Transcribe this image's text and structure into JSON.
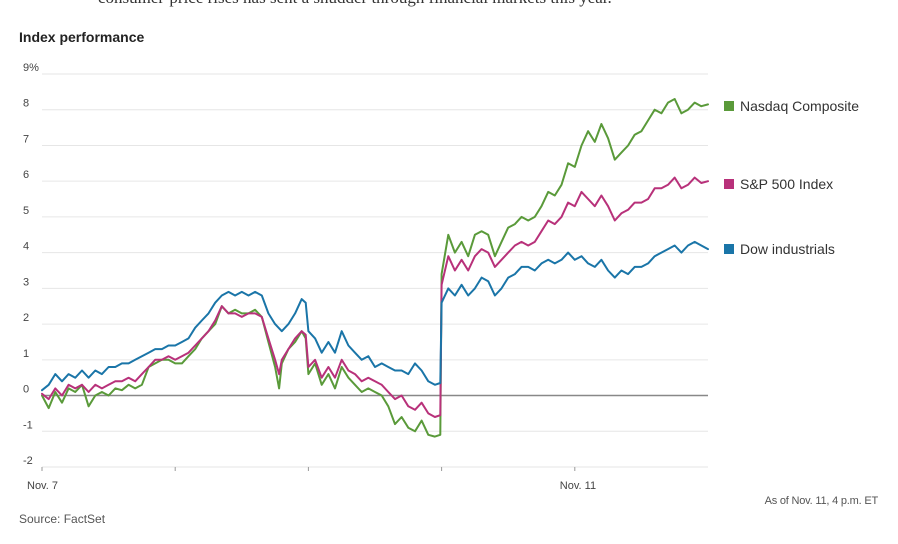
{
  "header": {
    "cut_text": "consumer-price rises has sent a shudder through financial markets this year."
  },
  "footer": {
    "source": "Source: FactSet",
    "timestamp": "As of Nov. 11, 4 p.m. ET"
  },
  "chart_data": {
    "type": "line",
    "title": "Index performance",
    "ylim": [
      -2,
      9
    ],
    "y_ticks": [
      -2,
      -1,
      0,
      1,
      2,
      3,
      4,
      5,
      6,
      7,
      8,
      9
    ],
    "y_tick_labels": [
      "-2",
      "-1",
      "0",
      "1",
      "2",
      "3",
      "4",
      "5",
      "6",
      "7",
      "8",
      "9%"
    ],
    "x_tick_labels": [
      {
        "day": 0,
        "label": "Nov. 7"
      },
      {
        "day": 1,
        "label": ""
      },
      {
        "day": 2,
        "label": ""
      },
      {
        "day": 3,
        "label": ""
      },
      {
        "day": 4,
        "label": "Nov. 11"
      }
    ],
    "xlim": [
      0,
      5
    ],
    "grid": true,
    "legend": "right",
    "series": [
      {
        "name": "Nasdaq Composite",
        "color": "#5a9a3a",
        "points": [
          [
            0.0,
            0.0
          ],
          [
            0.05,
            -0.35
          ],
          [
            0.1,
            0.1
          ],
          [
            0.15,
            -0.2
          ],
          [
            0.2,
            0.2
          ],
          [
            0.25,
            0.1
          ],
          [
            0.3,
            0.3
          ],
          [
            0.35,
            -0.3
          ],
          [
            0.4,
            0.0
          ],
          [
            0.45,
            0.1
          ],
          [
            0.5,
            0.0
          ],
          [
            0.55,
            0.2
          ],
          [
            0.6,
            0.15
          ],
          [
            0.65,
            0.3
          ],
          [
            0.7,
            0.2
          ],
          [
            0.75,
            0.3
          ],
          [
            0.8,
            0.8
          ],
          [
            0.85,
            0.9
          ],
          [
            0.9,
            1.0
          ],
          [
            0.95,
            1.0
          ],
          [
            1.0,
            0.9
          ],
          [
            1.05,
            0.9
          ],
          [
            1.1,
            1.1
          ],
          [
            1.15,
            1.3
          ],
          [
            1.2,
            1.6
          ],
          [
            1.25,
            1.8
          ],
          [
            1.3,
            2.0
          ],
          [
            1.35,
            2.5
          ],
          [
            1.4,
            2.3
          ],
          [
            1.45,
            2.4
          ],
          [
            1.5,
            2.3
          ],
          [
            1.55,
            2.3
          ],
          [
            1.6,
            2.4
          ],
          [
            1.65,
            2.2
          ],
          [
            1.7,
            1.5
          ],
          [
            1.75,
            0.8
          ],
          [
            1.78,
            0.2
          ],
          [
            1.8,
            0.9
          ],
          [
            1.85,
            1.3
          ],
          [
            1.9,
            1.5
          ],
          [
            1.95,
            1.8
          ],
          [
            1.98,
            1.6
          ],
          [
            2.0,
            0.6
          ],
          [
            2.05,
            0.9
          ],
          [
            2.1,
            0.3
          ],
          [
            2.15,
            0.6
          ],
          [
            2.2,
            0.2
          ],
          [
            2.25,
            0.8
          ],
          [
            2.3,
            0.5
          ],
          [
            2.35,
            0.3
          ],
          [
            2.4,
            0.1
          ],
          [
            2.45,
            0.2
          ],
          [
            2.5,
            0.1
          ],
          [
            2.55,
            0.0
          ],
          [
            2.6,
            -0.3
          ],
          [
            2.65,
            -0.8
          ],
          [
            2.7,
            -0.6
          ],
          [
            2.75,
            -0.9
          ],
          [
            2.8,
            -1.0
          ],
          [
            2.85,
            -0.7
          ],
          [
            2.9,
            -1.1
          ],
          [
            2.95,
            -1.15
          ],
          [
            2.99,
            -1.1
          ],
          [
            3.0,
            3.4
          ],
          [
            3.05,
            4.5
          ],
          [
            3.1,
            4.0
          ],
          [
            3.15,
            4.3
          ],
          [
            3.2,
            3.9
          ],
          [
            3.25,
            4.5
          ],
          [
            3.3,
            4.6
          ],
          [
            3.35,
            4.5
          ],
          [
            3.4,
            3.9
          ],
          [
            3.45,
            4.3
          ],
          [
            3.5,
            4.7
          ],
          [
            3.55,
            4.8
          ],
          [
            3.6,
            5.0
          ],
          [
            3.65,
            4.9
          ],
          [
            3.7,
            5.0
          ],
          [
            3.75,
            5.3
          ],
          [
            3.8,
            5.7
          ],
          [
            3.85,
            5.6
          ],
          [
            3.9,
            5.9
          ],
          [
            3.95,
            6.5
          ],
          [
            4.0,
            6.4
          ],
          [
            4.05,
            7.0
          ],
          [
            4.1,
            7.4
          ],
          [
            4.15,
            7.1
          ],
          [
            4.2,
            7.6
          ],
          [
            4.25,
            7.2
          ],
          [
            4.3,
            6.6
          ],
          [
            4.35,
            6.8
          ],
          [
            4.4,
            7.0
          ],
          [
            4.45,
            7.3
          ],
          [
            4.5,
            7.4
          ],
          [
            4.55,
            7.7
          ],
          [
            4.6,
            8.0
          ],
          [
            4.65,
            7.9
          ],
          [
            4.7,
            8.2
          ],
          [
            4.75,
            8.3
          ],
          [
            4.8,
            7.9
          ],
          [
            4.85,
            8.0
          ],
          [
            4.9,
            8.2
          ],
          [
            4.95,
            8.1
          ],
          [
            5.0,
            8.15
          ]
        ]
      },
      {
        "name": "S&P 500 Index",
        "color": "#b8317a",
        "points": [
          [
            0.0,
            0.05
          ],
          [
            0.05,
            -0.1
          ],
          [
            0.1,
            0.2
          ],
          [
            0.15,
            0.0
          ],
          [
            0.2,
            0.3
          ],
          [
            0.25,
            0.2
          ],
          [
            0.3,
            0.3
          ],
          [
            0.35,
            0.1
          ],
          [
            0.4,
            0.3
          ],
          [
            0.45,
            0.2
          ],
          [
            0.5,
            0.3
          ],
          [
            0.55,
            0.4
          ],
          [
            0.6,
            0.4
          ],
          [
            0.65,
            0.5
          ],
          [
            0.7,
            0.4
          ],
          [
            0.75,
            0.6
          ],
          [
            0.8,
            0.8
          ],
          [
            0.85,
            1.0
          ],
          [
            0.9,
            1.0
          ],
          [
            0.95,
            1.1
          ],
          [
            1.0,
            1.0
          ],
          [
            1.05,
            1.1
          ],
          [
            1.1,
            1.2
          ],
          [
            1.15,
            1.4
          ],
          [
            1.2,
            1.6
          ],
          [
            1.25,
            1.8
          ],
          [
            1.3,
            2.1
          ],
          [
            1.35,
            2.5
          ],
          [
            1.4,
            2.3
          ],
          [
            1.45,
            2.3
          ],
          [
            1.5,
            2.2
          ],
          [
            1.55,
            2.3
          ],
          [
            1.6,
            2.3
          ],
          [
            1.65,
            2.2
          ],
          [
            1.7,
            1.6
          ],
          [
            1.75,
            1.0
          ],
          [
            1.78,
            0.6
          ],
          [
            1.8,
            1.0
          ],
          [
            1.85,
            1.3
          ],
          [
            1.9,
            1.6
          ],
          [
            1.95,
            1.8
          ],
          [
            1.98,
            1.7
          ],
          [
            2.0,
            0.8
          ],
          [
            2.05,
            1.0
          ],
          [
            2.1,
            0.5
          ],
          [
            2.15,
            0.8
          ],
          [
            2.2,
            0.5
          ],
          [
            2.25,
            1.0
          ],
          [
            2.3,
            0.7
          ],
          [
            2.35,
            0.6
          ],
          [
            2.4,
            0.4
          ],
          [
            2.45,
            0.5
          ],
          [
            2.5,
            0.4
          ],
          [
            2.55,
            0.3
          ],
          [
            2.6,
            0.1
          ],
          [
            2.65,
            -0.1
          ],
          [
            2.7,
            0.0
          ],
          [
            2.75,
            -0.3
          ],
          [
            2.8,
            -0.4
          ],
          [
            2.85,
            -0.2
          ],
          [
            2.9,
            -0.5
          ],
          [
            2.95,
            -0.6
          ],
          [
            2.99,
            -0.55
          ],
          [
            3.0,
            3.1
          ],
          [
            3.05,
            3.9
          ],
          [
            3.1,
            3.5
          ],
          [
            3.15,
            3.8
          ],
          [
            3.2,
            3.5
          ],
          [
            3.25,
            3.9
          ],
          [
            3.3,
            4.1
          ],
          [
            3.35,
            4.0
          ],
          [
            3.4,
            3.6
          ],
          [
            3.45,
            3.8
          ],
          [
            3.5,
            4.0
          ],
          [
            3.55,
            4.2
          ],
          [
            3.6,
            4.3
          ],
          [
            3.65,
            4.2
          ],
          [
            3.7,
            4.3
          ],
          [
            3.75,
            4.6
          ],
          [
            3.8,
            4.9
          ],
          [
            3.85,
            4.8
          ],
          [
            3.9,
            5.0
          ],
          [
            3.95,
            5.4
          ],
          [
            4.0,
            5.3
          ],
          [
            4.05,
            5.7
          ],
          [
            4.1,
            5.5
          ],
          [
            4.15,
            5.3
          ],
          [
            4.2,
            5.6
          ],
          [
            4.25,
            5.3
          ],
          [
            4.3,
            4.9
          ],
          [
            4.35,
            5.1
          ],
          [
            4.4,
            5.2
          ],
          [
            4.45,
            5.4
          ],
          [
            4.5,
            5.4
          ],
          [
            4.55,
            5.5
          ],
          [
            4.6,
            5.8
          ],
          [
            4.65,
            5.8
          ],
          [
            4.7,
            5.9
          ],
          [
            4.75,
            6.1
          ],
          [
            4.8,
            5.8
          ],
          [
            4.85,
            5.9
          ],
          [
            4.9,
            6.1
          ],
          [
            4.95,
            5.95
          ],
          [
            5.0,
            6.0
          ]
        ]
      },
      {
        "name": "Dow industrials",
        "color": "#1a75a8",
        "points": [
          [
            0.0,
            0.15
          ],
          [
            0.05,
            0.3
          ],
          [
            0.1,
            0.6
          ],
          [
            0.15,
            0.4
          ],
          [
            0.2,
            0.6
          ],
          [
            0.25,
            0.5
          ],
          [
            0.3,
            0.7
          ],
          [
            0.35,
            0.5
          ],
          [
            0.4,
            0.7
          ],
          [
            0.45,
            0.6
          ],
          [
            0.5,
            0.8
          ],
          [
            0.55,
            0.8
          ],
          [
            0.6,
            0.9
          ],
          [
            0.65,
            0.9
          ],
          [
            0.7,
            1.0
          ],
          [
            0.75,
            1.1
          ],
          [
            0.8,
            1.2
          ],
          [
            0.85,
            1.3
          ],
          [
            0.9,
            1.3
          ],
          [
            0.95,
            1.4
          ],
          [
            1.0,
            1.4
          ],
          [
            1.05,
            1.5
          ],
          [
            1.1,
            1.6
          ],
          [
            1.15,
            1.9
          ],
          [
            1.2,
            2.1
          ],
          [
            1.25,
            2.3
          ],
          [
            1.3,
            2.6
          ],
          [
            1.35,
            2.8
          ],
          [
            1.4,
            2.9
          ],
          [
            1.45,
            2.8
          ],
          [
            1.5,
            2.9
          ],
          [
            1.55,
            2.8
          ],
          [
            1.6,
            2.9
          ],
          [
            1.65,
            2.8
          ],
          [
            1.7,
            2.3
          ],
          [
            1.75,
            2.0
          ],
          [
            1.8,
            1.8
          ],
          [
            1.85,
            2.0
          ],
          [
            1.9,
            2.3
          ],
          [
            1.95,
            2.7
          ],
          [
            1.98,
            2.6
          ],
          [
            2.0,
            1.8
          ],
          [
            2.05,
            1.6
          ],
          [
            2.1,
            1.2
          ],
          [
            2.15,
            1.5
          ],
          [
            2.2,
            1.2
          ],
          [
            2.25,
            1.8
          ],
          [
            2.3,
            1.4
          ],
          [
            2.35,
            1.2
          ],
          [
            2.4,
            1.0
          ],
          [
            2.45,
            1.1
          ],
          [
            2.5,
            0.8
          ],
          [
            2.55,
            0.9
          ],
          [
            2.6,
            0.8
          ],
          [
            2.65,
            0.7
          ],
          [
            2.7,
            0.7
          ],
          [
            2.75,
            0.6
          ],
          [
            2.8,
            0.9
          ],
          [
            2.85,
            0.7
          ],
          [
            2.9,
            0.4
          ],
          [
            2.95,
            0.3
          ],
          [
            2.99,
            0.35
          ],
          [
            3.0,
            2.6
          ],
          [
            3.05,
            3.0
          ],
          [
            3.1,
            2.8
          ],
          [
            3.15,
            3.1
          ],
          [
            3.2,
            2.8
          ],
          [
            3.25,
            3.0
          ],
          [
            3.3,
            3.3
          ],
          [
            3.35,
            3.2
          ],
          [
            3.4,
            2.8
          ],
          [
            3.45,
            3.0
          ],
          [
            3.5,
            3.3
          ],
          [
            3.55,
            3.4
          ],
          [
            3.6,
            3.6
          ],
          [
            3.65,
            3.6
          ],
          [
            3.7,
            3.5
          ],
          [
            3.75,
            3.7
          ],
          [
            3.8,
            3.8
          ],
          [
            3.85,
            3.7
          ],
          [
            3.9,
            3.8
          ],
          [
            3.95,
            4.0
          ],
          [
            4.0,
            3.8
          ],
          [
            4.05,
            3.9
          ],
          [
            4.1,
            3.7
          ],
          [
            4.15,
            3.6
          ],
          [
            4.2,
            3.8
          ],
          [
            4.25,
            3.5
          ],
          [
            4.3,
            3.3
          ],
          [
            4.35,
            3.5
          ],
          [
            4.4,
            3.4
          ],
          [
            4.45,
            3.6
          ],
          [
            4.5,
            3.6
          ],
          [
            4.55,
            3.7
          ],
          [
            4.6,
            3.9
          ],
          [
            4.65,
            4.0
          ],
          [
            4.7,
            4.1
          ],
          [
            4.75,
            4.2
          ],
          [
            4.8,
            4.0
          ],
          [
            4.85,
            4.2
          ],
          [
            4.9,
            4.3
          ],
          [
            4.95,
            4.2
          ],
          [
            5.0,
            4.1
          ]
        ]
      }
    ]
  }
}
